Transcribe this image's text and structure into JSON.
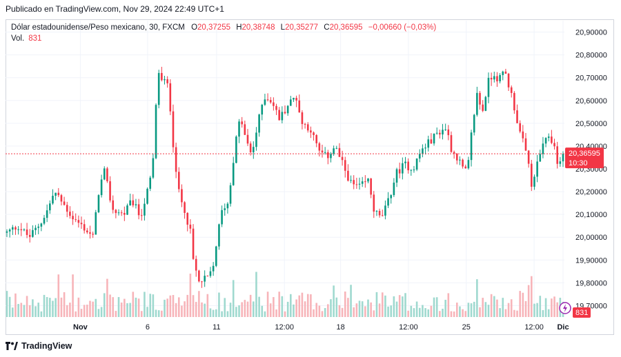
{
  "header": {
    "published": "Publicado en TradingView.com, Nov 29, 2024 22:49 UTC+1"
  },
  "legend": {
    "symbol": "Dólar estadounidense/Peso mexicano, 30, FXCM",
    "open_label": "O",
    "open": "20,37255",
    "high_label": "H",
    "high": "20,38748",
    "low_label": "L",
    "low": "20,35277",
    "close_label": "C",
    "close": "20,36595",
    "change": "−0,00660 (−0,03%)",
    "volume_label": "Vol.",
    "volume": "831"
  },
  "price_tag": {
    "price": "20,36595",
    "countdown": "10:30"
  },
  "volume_tag": "831",
  "footer": {
    "brand": "TradingView"
  },
  "colors": {
    "up": "#089981",
    "down": "#f23645",
    "up_volume": "#9fd9cf",
    "down_volume": "#f7b4b9",
    "grid": "#f0f3fa",
    "axis_text": "#131722",
    "last_price_line": "#f23645"
  },
  "chart_data": {
    "type": "candlestick",
    "title": "Dólar estadounidense/Peso mexicano, 30, FXCM",
    "ylim": [
      19.65,
      20.95
    ],
    "y_ticks": [
      "20,90000",
      "20,80000",
      "20,70000",
      "20,60000",
      "20,50000",
      "20,40000",
      "20,30000",
      "20,20000",
      "20,10000",
      "20,00000",
      "19,90000",
      "19,80000",
      "19,70000"
    ],
    "y_tick_values": [
      20.9,
      20.8,
      20.7,
      20.6,
      20.5,
      20.4,
      20.3,
      20.2,
      20.1,
      20.0,
      19.9,
      19.8,
      19.7
    ],
    "x_ticks": [
      {
        "label": "Nov",
        "bold": true,
        "t": 0.132
      },
      {
        "label": "6",
        "bold": false,
        "t": 0.253
      },
      {
        "label": "11",
        "bold": false,
        "t": 0.377
      },
      {
        "label": "12:00",
        "bold": false,
        "t": 0.499
      },
      {
        "label": "18",
        "bold": false,
        "t": 0.6
      },
      {
        "label": "12:00",
        "bold": false,
        "t": 0.722
      },
      {
        "label": "25",
        "bold": false,
        "t": 0.826
      },
      {
        "label": "12:00",
        "bold": false,
        "t": 0.948
      },
      {
        "label": "Dic",
        "bold": true,
        "t": 1.0
      }
    ],
    "last_price": 20.36595,
    "price_path": [
      [
        0.0,
        20.02
      ],
      [
        0.02,
        20.05
      ],
      [
        0.04,
        20.0
      ],
      [
        0.06,
        20.06
      ],
      [
        0.075,
        20.13
      ],
      [
        0.085,
        20.2
      ],
      [
        0.1,
        20.15
      ],
      [
        0.12,
        20.08
      ],
      [
        0.135,
        20.05
      ],
      [
        0.155,
        20.0
      ],
      [
        0.165,
        20.2
      ],
      [
        0.175,
        20.29
      ],
      [
        0.19,
        20.12
      ],
      [
        0.21,
        20.1
      ],
      [
        0.225,
        20.16
      ],
      [
        0.24,
        20.09
      ],
      [
        0.255,
        20.22
      ],
      [
        0.262,
        20.3
      ],
      [
        0.268,
        20.57
      ],
      [
        0.274,
        20.75
      ],
      [
        0.28,
        20.66
      ],
      [
        0.286,
        20.7
      ],
      [
        0.292,
        20.62
      ],
      [
        0.3,
        20.38
      ],
      [
        0.31,
        20.18
      ],
      [
        0.32,
        20.12
      ],
      [
        0.33,
        20.02
      ],
      [
        0.335,
        19.9
      ],
      [
        0.345,
        19.8
      ],
      [
        0.36,
        19.82
      ],
      [
        0.37,
        19.85
      ],
      [
        0.378,
        20.0
      ],
      [
        0.388,
        20.13
      ],
      [
        0.398,
        20.15
      ],
      [
        0.41,
        20.4
      ],
      [
        0.42,
        20.53
      ],
      [
        0.43,
        20.42
      ],
      [
        0.44,
        20.36
      ],
      [
        0.45,
        20.48
      ],
      [
        0.462,
        20.62
      ],
      [
        0.475,
        20.6
      ],
      [
        0.49,
        20.52
      ],
      [
        0.505,
        20.58
      ],
      [
        0.52,
        20.62
      ],
      [
        0.53,
        20.5
      ],
      [
        0.545,
        20.48
      ],
      [
        0.56,
        20.38
      ],
      [
        0.575,
        20.35
      ],
      [
        0.59,
        20.4
      ],
      [
        0.605,
        20.31
      ],
      [
        0.62,
        20.23
      ],
      [
        0.635,
        20.22
      ],
      [
        0.65,
        20.25
      ],
      [
        0.66,
        20.12
      ],
      [
        0.672,
        20.08
      ],
      [
        0.685,
        20.15
      ],
      [
        0.7,
        20.28
      ],
      [
        0.715,
        20.32
      ],
      [
        0.73,
        20.3
      ],
      [
        0.745,
        20.38
      ],
      [
        0.76,
        20.42
      ],
      [
        0.775,
        20.46
      ],
      [
        0.79,
        20.48
      ],
      [
        0.8,
        20.38
      ],
      [
        0.81,
        20.35
      ],
      [
        0.82,
        20.3
      ],
      [
        0.828,
        20.28
      ],
      [
        0.836,
        20.47
      ],
      [
        0.845,
        20.63
      ],
      [
        0.855,
        20.55
      ],
      [
        0.865,
        20.68
      ],
      [
        0.875,
        20.72
      ],
      [
        0.885,
        20.69
      ],
      [
        0.895,
        20.73
      ],
      [
        0.91,
        20.6
      ],
      [
        0.92,
        20.48
      ],
      [
        0.93,
        20.4
      ],
      [
        0.94,
        20.3
      ],
      [
        0.945,
        20.2
      ],
      [
        0.955,
        20.35
      ],
      [
        0.965,
        20.4
      ],
      [
        0.975,
        20.45
      ],
      [
        0.985,
        20.39
      ],
      [
        0.993,
        20.3
      ],
      [
        1.0,
        20.37
      ]
    ]
  }
}
